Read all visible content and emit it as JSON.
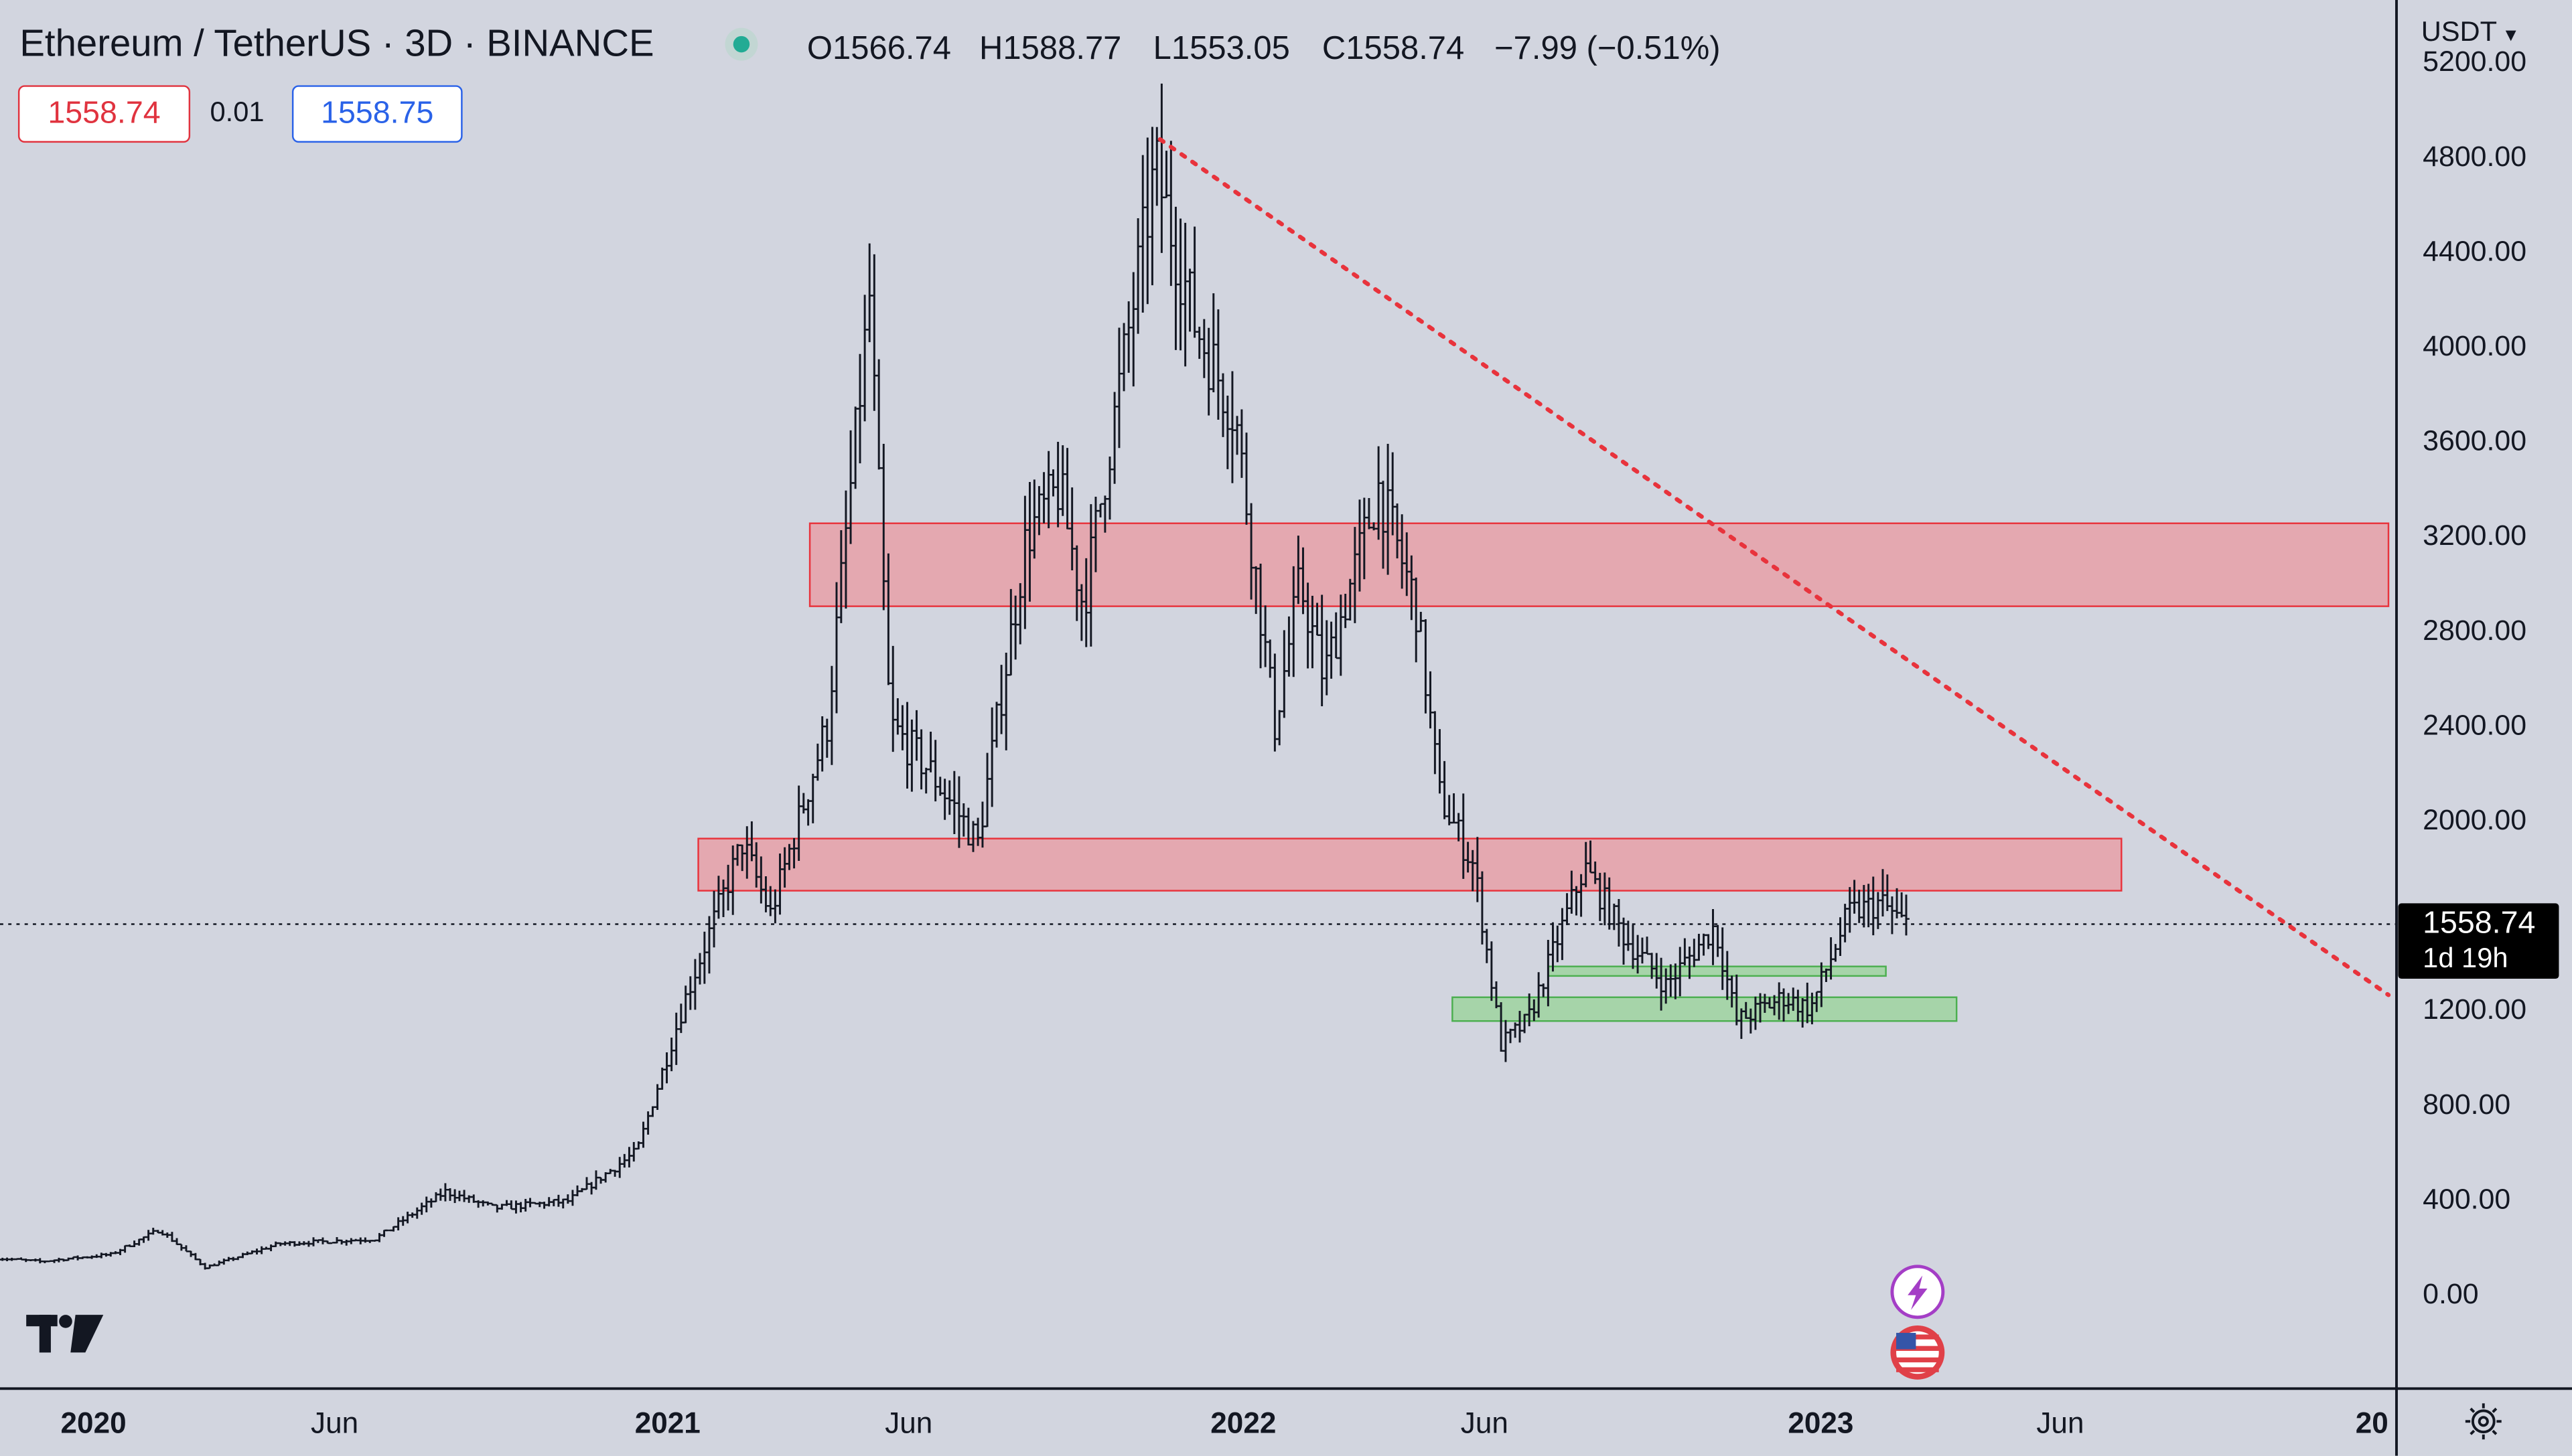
{
  "header": {
    "title": "Ethereum / TetherUS · 3D · BINANCE",
    "open": "O1566.74",
    "high": "H1588.77",
    "low": "L1553.05",
    "close": "C1558.74",
    "change": "−7.99 (−0.51%)",
    "status_color": "#22ab94"
  },
  "quote": {
    "bid": "1558.74",
    "spread": "0.01",
    "ask": "1558.75"
  },
  "currency_label": "USDT",
  "last_price": {
    "value": "1558.74",
    "countdown": "1d 19h"
  },
  "icons": [
    "tradingview-logo-icon",
    "lightning-icon",
    "us-flag-icon",
    "settings-icon",
    "chevron-down-icon"
  ],
  "colors": {
    "background": "#d2d5df",
    "candles": "#131722",
    "resistance_zone": "#e8a0a8",
    "support_zone": "#9fd4a0",
    "trendline": "#e8333c"
  },
  "chart_data": {
    "type": "ohlc-bar",
    "symbol": "Ethereum / TetherUS",
    "interval": "3D",
    "exchange": "BINANCE",
    "y_ticks": [
      "0.00",
      "400.00",
      "800.00",
      "1200.00",
      "2000.00",
      "2400.00",
      "2800.00",
      "3200.00",
      "3600.00",
      "4000.00",
      "4400.00",
      "4800.00",
      "5200.00"
    ],
    "ylim": [
      -200,
      5300
    ],
    "x_ticks": [
      "2020",
      "Jun",
      "2021",
      "Jun",
      "2022",
      "Jun",
      "2023",
      "Jun",
      "20"
    ],
    "x_range": [
      "2019-11",
      "2024-01"
    ],
    "gridlines": false,
    "price_path": [
      [
        "2019-11-01",
        150
      ],
      [
        "2019-12-01",
        135
      ],
      [
        "2020-01-15",
        165
      ],
      [
        "2020-02-15",
        270
      ],
      [
        "2020-03-15",
        110
      ],
      [
        "2020-05-01",
        210
      ],
      [
        "2020-07-01",
        230
      ],
      [
        "2020-08-15",
        430
      ],
      [
        "2020-09-15",
        360
      ],
      [
        "2020-11-01",
        390
      ],
      [
        "2020-12-15",
        600
      ],
      [
        "2021-01-15",
        1250
      ],
      [
        "2021-02-20",
        1900
      ],
      [
        "2021-03-10",
        1600
      ],
      [
        "2021-04-15",
        2400
      ],
      [
        "2021-05-12",
        4200
      ],
      [
        "2021-05-25",
        2400
      ],
      [
        "2021-06-20",
        2200
      ],
      [
        "2021-07-20",
        1900
      ],
      [
        "2021-08-20",
        3200
      ],
      [
        "2021-09-10",
        3400
      ],
      [
        "2021-09-25",
        2900
      ],
      [
        "2021-10-20",
        3900
      ],
      [
        "2021-11-10",
        4750
      ],
      [
        "2021-12-05",
        4100
      ],
      [
        "2021-12-31",
        3700
      ],
      [
        "2022-01-25",
        2400
      ],
      [
        "2022-02-10",
        3000
      ],
      [
        "2022-02-25",
        2600
      ],
      [
        "2022-04-01",
        3400
      ],
      [
        "2022-04-25",
        2900
      ],
      [
        "2022-05-10",
        2100
      ],
      [
        "2022-06-01",
        1800
      ],
      [
        "2022-06-18",
        1050
      ],
      [
        "2022-07-05",
        1150
      ],
      [
        "2022-08-10",
        1800
      ],
      [
        "2022-09-05",
        1500
      ],
      [
        "2022-10-01",
        1300
      ],
      [
        "2022-11-01",
        1550
      ],
      [
        "2022-11-15",
        1150
      ],
      [
        "2022-12-15",
        1250
      ],
      [
        "2023-01-01",
        1200
      ],
      [
        "2023-01-25",
        1600
      ],
      [
        "2023-02-15",
        1650
      ],
      [
        "2023-03-01",
        1558
      ]
    ],
    "zones": [
      {
        "kind": "resistance",
        "from": "2021-04-01",
        "to": "2024-01-01",
        "low": 2900,
        "high": 3250
      },
      {
        "kind": "resistance",
        "from": "2021-01-20",
        "to": "2023-07-15",
        "low": 1700,
        "high": 1920
      },
      {
        "kind": "support",
        "from": "2022-07-15",
        "to": "2023-02-15",
        "low": 1340,
        "high": 1380
      },
      {
        "kind": "support",
        "from": "2022-05-15",
        "to": "2023-04-01",
        "low": 1150,
        "high": 1250
      }
    ],
    "trendline": {
      "from": [
        "2021-11-10",
        4870
      ],
      "to": [
        "2024-01-01",
        1260
      ],
      "style": "dotted"
    },
    "last_price_line": 1558.74
  }
}
